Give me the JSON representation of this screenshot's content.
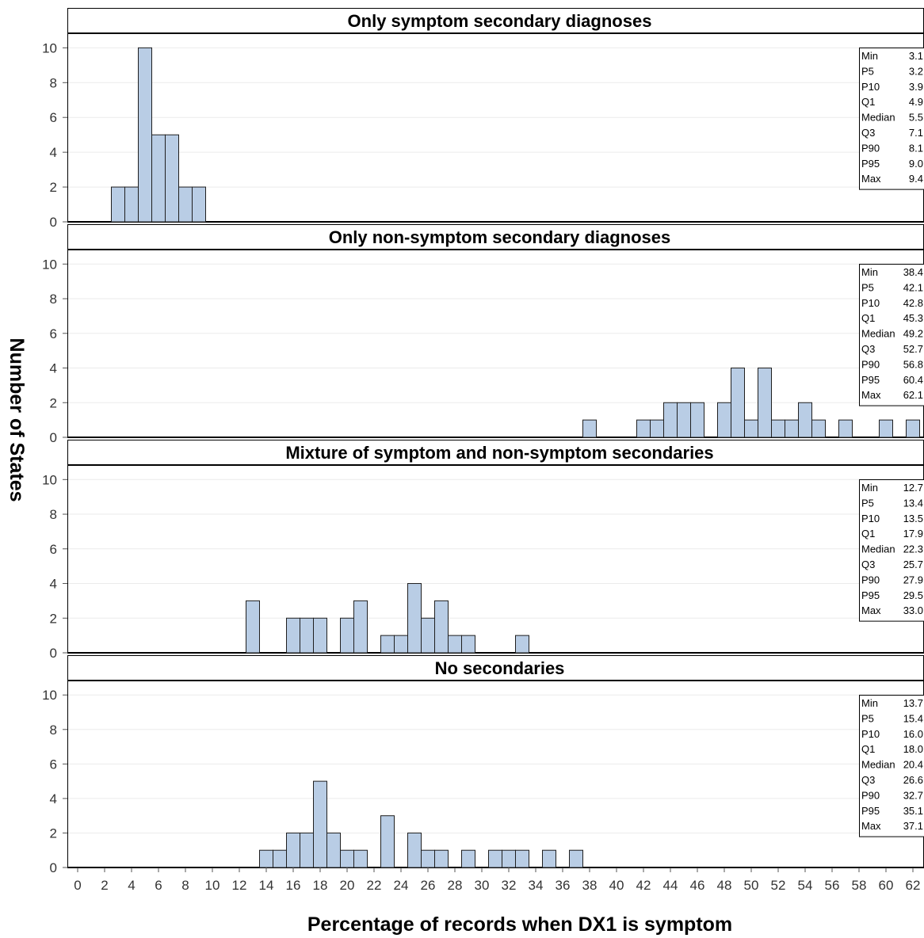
{
  "chart_data": {
    "type": "bar",
    "xlabel": "Percentage of records when DX1 is symptom",
    "ylabel": "Number of States",
    "x_range": [
      -1,
      63
    ],
    "x_ticks": [
      0,
      2,
      4,
      6,
      8,
      10,
      12,
      14,
      16,
      18,
      20,
      22,
      24,
      26,
      28,
      30,
      32,
      34,
      36,
      38,
      40,
      42,
      44,
      46,
      48,
      50,
      52,
      54,
      56,
      58,
      60,
      62
    ],
    "y_range": [
      0,
      10.7
    ],
    "y_ticks": [
      0,
      2,
      4,
      6,
      8,
      10
    ],
    "bin_width": 1,
    "grid": true,
    "bar_color": "#b9cde5",
    "panels": [
      {
        "title": "Only symptom secondary diagnoses",
        "bins": [
          [
            3,
            2
          ],
          [
            4,
            2
          ],
          [
            5,
            10
          ],
          [
            6,
            5
          ],
          [
            7,
            5
          ],
          [
            8,
            2
          ],
          [
            9,
            2
          ]
        ],
        "stats": [
          [
            "Min",
            "3.1"
          ],
          [
            "P5",
            "3.2"
          ],
          [
            "P10",
            "3.9"
          ],
          [
            "Q1",
            "4.9"
          ],
          [
            "Median",
            "5.5"
          ],
          [
            "Q3",
            "7.1"
          ],
          [
            "P90",
            "8.1"
          ],
          [
            "P95",
            "9.0"
          ],
          [
            "Max",
            "9.4"
          ]
        ]
      },
      {
        "title": "Only non-symptom secondary diagnoses",
        "bins": [
          [
            38,
            1
          ],
          [
            42,
            1
          ],
          [
            43,
            1
          ],
          [
            44,
            2
          ],
          [
            45,
            2
          ],
          [
            46,
            2
          ],
          [
            48,
            2
          ],
          [
            49,
            4
          ],
          [
            50,
            1
          ],
          [
            51,
            4
          ],
          [
            52,
            1
          ],
          [
            53,
            1
          ],
          [
            54,
            2
          ],
          [
            55,
            1
          ],
          [
            57,
            1
          ],
          [
            60,
            1
          ],
          [
            62,
            1
          ]
        ],
        "stats": [
          [
            "Min",
            "38.4"
          ],
          [
            "P5",
            "42.1"
          ],
          [
            "P10",
            "42.8"
          ],
          [
            "Q1",
            "45.3"
          ],
          [
            "Median",
            "49.2"
          ],
          [
            "Q3",
            "52.7"
          ],
          [
            "P90",
            "56.8"
          ],
          [
            "P95",
            "60.4"
          ],
          [
            "Max",
            "62.1"
          ]
        ]
      },
      {
        "title": "Mixture of symptom and non-symptom secondaries",
        "bins": [
          [
            13,
            3
          ],
          [
            16,
            2
          ],
          [
            17,
            2
          ],
          [
            18,
            2
          ],
          [
            20,
            2
          ],
          [
            21,
            3
          ],
          [
            23,
            1
          ],
          [
            24,
            1
          ],
          [
            25,
            4
          ],
          [
            26,
            2
          ],
          [
            27,
            3
          ],
          [
            28,
            1
          ],
          [
            29,
            1
          ],
          [
            33,
            1
          ]
        ],
        "stats": [
          [
            "Min",
            "12.7"
          ],
          [
            "P5",
            "13.4"
          ],
          [
            "P10",
            "13.5"
          ],
          [
            "Q1",
            "17.9"
          ],
          [
            "Median",
            "22.3"
          ],
          [
            "Q3",
            "25.7"
          ],
          [
            "P90",
            "27.9"
          ],
          [
            "P95",
            "29.5"
          ],
          [
            "Max",
            "33.0"
          ]
        ]
      },
      {
        "title": "No secondaries",
        "bins": [
          [
            14,
            1
          ],
          [
            15,
            1
          ],
          [
            16,
            2
          ],
          [
            17,
            2
          ],
          [
            18,
            5
          ],
          [
            19,
            2
          ],
          [
            20,
            1
          ],
          [
            21,
            1
          ],
          [
            23,
            3
          ],
          [
            25,
            2
          ],
          [
            26,
            1
          ],
          [
            27,
            1
          ],
          [
            29,
            1
          ],
          [
            31,
            1
          ],
          [
            32,
            1
          ],
          [
            33,
            1
          ],
          [
            35,
            1
          ],
          [
            37,
            1
          ]
        ],
        "stats": [
          [
            "Min",
            "13.7"
          ],
          [
            "P5",
            "15.4"
          ],
          [
            "P10",
            "16.0"
          ],
          [
            "Q1",
            "18.0"
          ],
          [
            "Median",
            "20.4"
          ],
          [
            "Q3",
            "26.6"
          ],
          [
            "P90",
            "32.7"
          ],
          [
            "P95",
            "35.1"
          ],
          [
            "Max",
            "37.1"
          ]
        ]
      }
    ]
  }
}
